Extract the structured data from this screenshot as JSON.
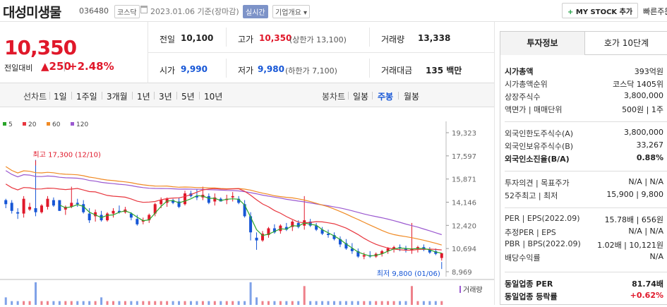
{
  "header": {
    "stock_name": "대성미생물",
    "stock_code": "036480",
    "market": "코스닥",
    "date_text": "2023.01.06  기준(장마감)",
    "realtime_label": "실시간",
    "overview_label": "기업개요 ▾",
    "mystock_label": "MY STOCK 추가",
    "quick_label": "빠른주문"
  },
  "price": {
    "current": "10,350",
    "change_label": "전일대비",
    "change": "▲250",
    "change_pct": "+2.48%",
    "prev_close_label": "전일",
    "prev_close": "10,100",
    "high_label": "고가",
    "high": "10,350",
    "upper_limit": "(상한가 13,100)",
    "volume_label": "거래량",
    "volume": "13,338",
    "open_label": "시가",
    "open": "9,990",
    "low_label": "저가",
    "low": "9,980",
    "lower_limit": "(하한가 7,100)",
    "amount_label": "거래대금",
    "amount": "135 백만"
  },
  "period": {
    "line_label": "선차트",
    "line_items": [
      "1일",
      "1주일",
      "3개월",
      "1년",
      "3년",
      "5년",
      "10년"
    ],
    "candle_label": "봉차트",
    "candle_items": [
      "일봉",
      "주봉",
      "월봉"
    ],
    "candle_selected": "주봉"
  },
  "chart_data": {
    "type": "candlestick",
    "title": "",
    "legend": [
      {
        "name": "5",
        "color": "#2aa52a"
      },
      {
        "name": "20",
        "color": "#e8373f"
      },
      {
        "name": "60",
        "color": "#f08a24"
      },
      {
        "name": "120",
        "color": "#9b59d0"
      }
    ],
    "y_ticks": [
      "19,323",
      "17,597",
      "15,871",
      "14,146",
      "12,420",
      "10,694",
      "8,969"
    ],
    "ylim": [
      8969,
      19323
    ],
    "high_annotation": "최고 17,300 (12/10)",
    "low_annotation": "최저 9,800 (01/06)",
    "volume_label": "거래량",
    "candles": [
      {
        "o": 14300,
        "h": 14400,
        "l": 13700,
        "c": 14000
      },
      {
        "o": 14100,
        "h": 14300,
        "l": 13300,
        "c": 13500
      },
      {
        "o": 13400,
        "h": 13700,
        "l": 12900,
        "c": 13300
      },
      {
        "o": 13300,
        "h": 14600,
        "l": 13000,
        "c": 14400
      },
      {
        "o": 13600,
        "h": 14100,
        "l": 13500,
        "c": 13800
      },
      {
        "o": 13700,
        "h": 17300,
        "l": 13100,
        "c": 13400
      },
      {
        "o": 13400,
        "h": 14000,
        "l": 13300,
        "c": 13900
      },
      {
        "o": 13800,
        "h": 14600,
        "l": 13600,
        "c": 14400
      },
      {
        "o": 14300,
        "h": 14500,
        "l": 13800,
        "c": 13900
      },
      {
        "o": 14300,
        "h": 14300,
        "l": 13500,
        "c": 13500
      },
      {
        "o": 13600,
        "h": 13900,
        "l": 13200,
        "c": 13800
      },
      {
        "o": 13800,
        "h": 15300,
        "l": 13700,
        "c": 14100
      },
      {
        "o": 14100,
        "h": 14400,
        "l": 13800,
        "c": 14000
      },
      {
        "o": 14000,
        "h": 14300,
        "l": 13300,
        "c": 13400
      },
      {
        "o": 13300,
        "h": 13700,
        "l": 12600,
        "c": 12800
      },
      {
        "o": 13100,
        "h": 13600,
        "l": 12700,
        "c": 13400
      },
      {
        "o": 13200,
        "h": 13500,
        "l": 12700,
        "c": 12800
      },
      {
        "o": 12800,
        "h": 13400,
        "l": 12700,
        "c": 13300
      },
      {
        "o": 13300,
        "h": 13700,
        "l": 13000,
        "c": 13500
      },
      {
        "o": 13500,
        "h": 13900,
        "l": 13300,
        "c": 13400
      },
      {
        "o": 13400,
        "h": 13800,
        "l": 13300,
        "c": 13600
      },
      {
        "o": 13300,
        "h": 13400,
        "l": 12800,
        "c": 13000
      },
      {
        "o": 12900,
        "h": 13200,
        "l": 12400,
        "c": 12500
      },
      {
        "o": 12700,
        "h": 13000,
        "l": 12500,
        "c": 12800
      },
      {
        "o": 12800,
        "h": 13300,
        "l": 12600,
        "c": 13200
      },
      {
        "o": 13300,
        "h": 14100,
        "l": 13100,
        "c": 14000
      },
      {
        "o": 14000,
        "h": 14500,
        "l": 13700,
        "c": 14300
      },
      {
        "o": 14100,
        "h": 14500,
        "l": 13800,
        "c": 14400
      },
      {
        "o": 14300,
        "h": 14400,
        "l": 14000,
        "c": 14100
      },
      {
        "o": 14200,
        "h": 14500,
        "l": 13700,
        "c": 13800
      },
      {
        "o": 14000,
        "h": 15000,
        "l": 13900,
        "c": 14800
      },
      {
        "o": 14800,
        "h": 15000,
        "l": 14500,
        "c": 14600
      },
      {
        "o": 14600,
        "h": 15100,
        "l": 14300,
        "c": 14500
      },
      {
        "o": 14500,
        "h": 15300,
        "l": 14300,
        "c": 14700
      },
      {
        "o": 14600,
        "h": 14800,
        "l": 14000,
        "c": 14100
      },
      {
        "o": 14200,
        "h": 14800,
        "l": 13900,
        "c": 14500
      },
      {
        "o": 14400,
        "h": 14500,
        "l": 14200,
        "c": 14200
      },
      {
        "o": 14300,
        "h": 14700,
        "l": 14000,
        "c": 14400
      },
      {
        "o": 14500,
        "h": 14900,
        "l": 14200,
        "c": 14600
      },
      {
        "o": 14400,
        "h": 14600,
        "l": 14000,
        "c": 14100
      },
      {
        "o": 14000,
        "h": 14300,
        "l": 13000,
        "c": 13100
      },
      {
        "o": 13100,
        "h": 13400,
        "l": 11300,
        "c": 11900
      },
      {
        "o": 11500,
        "h": 11900,
        "l": 10600,
        "c": 11300
      },
      {
        "o": 11300,
        "h": 12000,
        "l": 11200,
        "c": 11800
      },
      {
        "o": 11700,
        "h": 12300,
        "l": 11500,
        "c": 12200
      },
      {
        "o": 12200,
        "h": 12500,
        "l": 11800,
        "c": 11900
      },
      {
        "o": 12000,
        "h": 12500,
        "l": 11800,
        "c": 12400
      },
      {
        "o": 12300,
        "h": 12600,
        "l": 12000,
        "c": 12100
      },
      {
        "o": 12300,
        "h": 12800,
        "l": 12000,
        "c": 12700
      },
      {
        "o": 12600,
        "h": 12800,
        "l": 12200,
        "c": 12300
      },
      {
        "o": 12400,
        "h": 14600,
        "l": 12100,
        "c": 12800
      },
      {
        "o": 12700,
        "h": 12900,
        "l": 12300,
        "c": 12400
      },
      {
        "o": 12400,
        "h": 12600,
        "l": 12000,
        "c": 12100
      },
      {
        "o": 12100,
        "h": 12300,
        "l": 11700,
        "c": 11800
      },
      {
        "o": 11800,
        "h": 12100,
        "l": 11500,
        "c": 11700
      },
      {
        "o": 11700,
        "h": 11900,
        "l": 11300,
        "c": 11400
      },
      {
        "o": 11400,
        "h": 11600,
        "l": 10800,
        "c": 11000
      },
      {
        "o": 11100,
        "h": 11400,
        "l": 10600,
        "c": 10700
      },
      {
        "o": 10700,
        "h": 11100,
        "l": 10300,
        "c": 10500
      },
      {
        "o": 10500,
        "h": 10700,
        "l": 10000,
        "c": 10100
      },
      {
        "o": 10100,
        "h": 10400,
        "l": 9900,
        "c": 10200
      },
      {
        "o": 10200,
        "h": 10500,
        "l": 10000,
        "c": 10100
      },
      {
        "o": 10100,
        "h": 10400,
        "l": 10000,
        "c": 10300
      },
      {
        "o": 10300,
        "h": 10600,
        "l": 10100,
        "c": 10500
      },
      {
        "o": 10500,
        "h": 10800,
        "l": 10300,
        "c": 10700
      },
      {
        "o": 10700,
        "h": 10900,
        "l": 10400,
        "c": 10800
      },
      {
        "o": 10800,
        "h": 11000,
        "l": 10500,
        "c": 10700
      },
      {
        "o": 10700,
        "h": 10900,
        "l": 10400,
        "c": 10600
      },
      {
        "o": 10600,
        "h": 12600,
        "l": 10300,
        "c": 10700
      },
      {
        "o": 10700,
        "h": 10900,
        "l": 10400,
        "c": 10800
      },
      {
        "o": 10800,
        "h": 11000,
        "l": 10500,
        "c": 10600
      },
      {
        "o": 10600,
        "h": 10800,
        "l": 10300,
        "c": 10400
      },
      {
        "o": 10500,
        "h": 10700,
        "l": 10200,
        "c": 10300
      },
      {
        "o": 9990,
        "h": 10350,
        "l": 9800,
        "c": 10350
      }
    ],
    "volumes": [
      2,
      1,
      1,
      1,
      1,
      6,
      1,
      1,
      1,
      1,
      1,
      1,
      1,
      1,
      1,
      1,
      2,
      1,
      1,
      1,
      1,
      1,
      1,
      1,
      1,
      1,
      1,
      1,
      1,
      1,
      1,
      1,
      1,
      1,
      1,
      1,
      1,
      1,
      1,
      1,
      1,
      6,
      2,
      1,
      1,
      1,
      1,
      1,
      1,
      1,
      5,
      1,
      1,
      1,
      1,
      1,
      1,
      1,
      1,
      1,
      1,
      1,
      1,
      1,
      1,
      1,
      1,
      1,
      5,
      1,
      1,
      1,
      1,
      1
    ]
  },
  "side": {
    "tab_info": "투자정보",
    "tab_quote": "호가 10단계",
    "rows1": [
      {
        "k": "시가총액",
        "v": "393억원"
      },
      {
        "k": "시가총액순위",
        "v": "코스닥 1405위"
      },
      {
        "k": "상장주식수",
        "v": "3,800,000"
      },
      {
        "k": "액면가 | 매매단위",
        "v": "500원 | 1주"
      }
    ],
    "rows2": [
      {
        "k": "외국인한도주식수(A)",
        "v": "3,800,000"
      },
      {
        "k": "외국인보유주식수(B)",
        "v": "33,267"
      },
      {
        "k": "외국인소진율(B/A)",
        "v": "0.88%"
      }
    ],
    "rows3": [
      {
        "k": "투자의견 | 목표주가",
        "v": "N/A | N/A"
      },
      {
        "k": "52주최고 | 최저",
        "v": "15,900 | 9,800"
      }
    ],
    "rows4": [
      {
        "k": "PER | EPS(2022.09)",
        "v": "15.78배 | 656원"
      },
      {
        "k": "추정PER | EPS",
        "v": "N/A | N/A"
      },
      {
        "k": "PBR | BPS(2022.09)",
        "v": "1.02배 | 10,121원"
      },
      {
        "k": "배당수익률",
        "v": "N/A"
      }
    ],
    "rows5": [
      {
        "k": "동일업종 PER",
        "v": "81.74배"
      },
      {
        "k": "동일업종 등락률",
        "v": "+0.62%"
      }
    ],
    "colors": {
      "up": "#e0182a",
      "down": "#1656d6"
    }
  }
}
